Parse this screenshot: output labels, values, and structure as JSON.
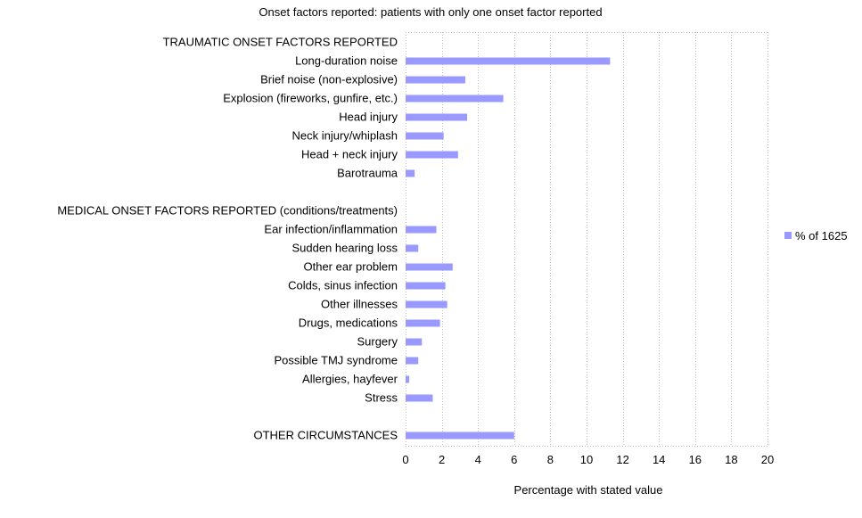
{
  "chart_data": {
    "type": "bar",
    "orientation": "horizontal",
    "title": "Onset factors reported: patients with only one onset factor reported",
    "xlabel": "Percentage with stated value",
    "ylabel": "",
    "xlim": [
      0,
      20
    ],
    "xticks": [
      "0",
      "2",
      "4",
      "6",
      "8",
      "10",
      "12",
      "14",
      "16",
      "18",
      "20"
    ],
    "grid": true,
    "legend_position": "right",
    "colors": {
      "bar": "#9999ff",
      "grid": "#bdbdbd",
      "axis": "#000000"
    },
    "series": [
      {
        "name": "% of 1625"
      }
    ],
    "categories": [
      "TRAUMATIC ONSET FACTORS REPORTED",
      "Long-duration noise",
      "Brief noise (non-explosive)",
      "Explosion (fireworks, gunfire, etc.)",
      "Head injury",
      "Neck injury/whiplash",
      "Head + neck injury",
      "Barotrauma",
      "",
      "MEDICAL ONSET FACTORS REPORTED (conditions/treatments)",
      "Ear infection/inflammation",
      "Sudden hearing loss",
      "Other ear problem",
      "Colds, sinus infection",
      "Other illnesses",
      "Drugs, medications",
      "Surgery",
      "Possible TMJ syndrome",
      "Allergies, hayfever",
      "Stress",
      "",
      "OTHER CIRCUMSTANCES"
    ],
    "values": [
      null,
      11.3,
      3.3,
      5.4,
      3.4,
      2.1,
      2.9,
      0.5,
      null,
      null,
      1.7,
      0.7,
      2.6,
      2.2,
      2.3,
      1.9,
      0.9,
      0.7,
      0.2,
      1.5,
      null,
      6.0
    ]
  }
}
